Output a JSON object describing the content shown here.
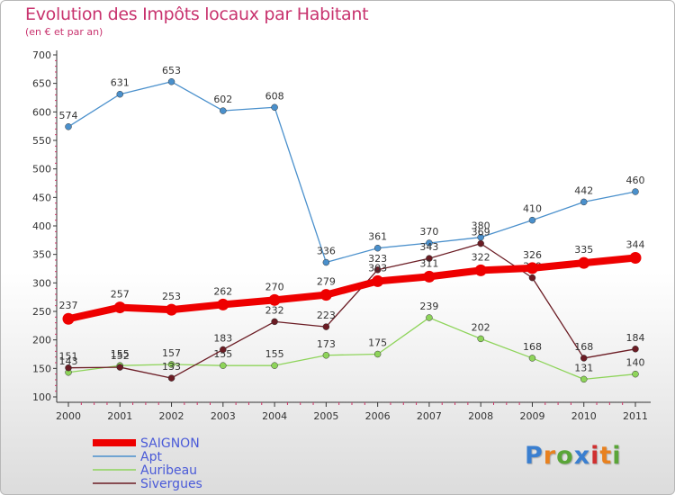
{
  "title": "Evolution des Impôts locaux par Habitant",
  "subtitle": "(en € et par an)",
  "logo": {
    "text": "Proxiti",
    "letters": [
      "P",
      "r",
      "o",
      "x",
      "i",
      "t",
      "i"
    ],
    "colors": [
      "#3a7fd0",
      "#e8811f",
      "#5aa538",
      "#3a7fd0",
      "#d03030",
      "#e8811f",
      "#5aa538"
    ]
  },
  "chart_data": {
    "type": "line",
    "title": "Evolution des Impôts locaux par Habitant",
    "subtitle": "(en € et par an)",
    "xlabel": "",
    "ylabel": "",
    "ylim": [
      100,
      700
    ],
    "yticks": [
      100,
      150,
      200,
      250,
      300,
      350,
      400,
      450,
      500,
      550,
      600,
      650,
      700
    ],
    "categories": [
      "2000",
      "2001",
      "2002",
      "2003",
      "2004",
      "2005",
      "2006",
      "2007",
      "2008",
      "2009",
      "2010",
      "2011"
    ],
    "legend_position": "bottom-left",
    "series": [
      {
        "name": "SAIGNON",
        "color": "#ee0000",
        "values": [
          237,
          257,
          253,
          262,
          270,
          279,
          303,
          311,
          322,
          326,
          335,
          344
        ]
      },
      {
        "name": "Apt",
        "color": "#4a90cc",
        "values": [
          574,
          631,
          653,
          602,
          608,
          336,
          361,
          370,
          380,
          410,
          442,
          460
        ]
      },
      {
        "name": "Auribeau",
        "color": "#8ed45a",
        "values": [
          143,
          155,
          157,
          155,
          155,
          173,
          175,
          239,
          202,
          168,
          131,
          140
        ]
      },
      {
        "name": "Sivergues",
        "color": "#6b1c24",
        "values": [
          151,
          152,
          133,
          183,
          232,
          223,
          323,
          343,
          369,
          309,
          168,
          184
        ]
      }
    ]
  }
}
